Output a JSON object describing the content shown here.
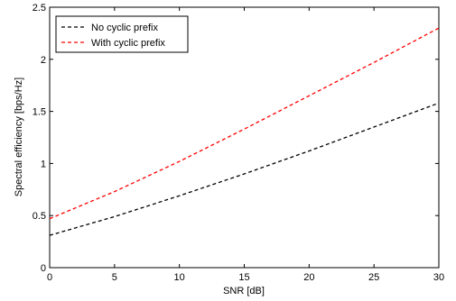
{
  "chart_data": {
    "type": "line",
    "xlabel": "SNR [dB]",
    "ylabel": "Spectral efficiency [bps/Hz]",
    "xlim": [
      0,
      30
    ],
    "ylim": [
      0,
      2.5
    ],
    "xticks": [
      "0",
      "5",
      "10",
      "15",
      "20",
      "25",
      "30"
    ],
    "yticks": [
      "0",
      "0.5",
      "1",
      "1.5",
      "2",
      "2.5"
    ],
    "grid": false,
    "legend_position": "top-left",
    "x": [
      0,
      5,
      10,
      15,
      20,
      25,
      30
    ],
    "series": [
      {
        "name": "No cyclic prefix",
        "color": "#000000",
        "dash": "dashed",
        "values": [
          0.31,
          0.49,
          0.69,
          0.9,
          1.12,
          1.35,
          1.58
        ]
      },
      {
        "name": "With cyclic prefix",
        "color": "#ff0000",
        "dash": "dashed",
        "values": [
          0.47,
          0.73,
          1.02,
          1.33,
          1.65,
          1.97,
          2.3
        ]
      }
    ]
  }
}
